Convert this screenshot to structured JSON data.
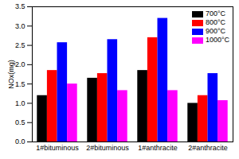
{
  "chart_data": {
    "type": "bar",
    "categories": [
      "1#bituminous",
      "2#bituminous",
      "1#anthracite",
      "2#anthracite"
    ],
    "series": [
      {
        "name": "700°C",
        "color": "#000000",
        "values": [
          1.2,
          1.65,
          1.85,
          1.0
        ]
      },
      {
        "name": "800°C",
        "color": "#ff0000",
        "values": [
          1.85,
          1.77,
          2.7,
          1.2
        ]
      },
      {
        "name": "900°C",
        "color": "#0000ff",
        "values": [
          2.57,
          2.65,
          3.2,
          1.77
        ]
      },
      {
        "name": "1000°C",
        "color": "#ff00ff",
        "values": [
          1.5,
          1.33,
          1.33,
          1.07
        ]
      }
    ],
    "y_label": "NOx(mg)",
    "ylim": [
      0,
      3.5
    ],
    "yticks": [
      {
        "value": 0,
        "label": "0.0"
      },
      0.5,
      {
        "value": 1,
        "label": "1.0"
      },
      1.5,
      {
        "value": 2,
        "label": "2.0"
      },
      2.5,
      {
        "value": 3,
        "label": "3.0"
      },
      3.5
    ],
    "legend": "top-right",
    "grid": false
  }
}
